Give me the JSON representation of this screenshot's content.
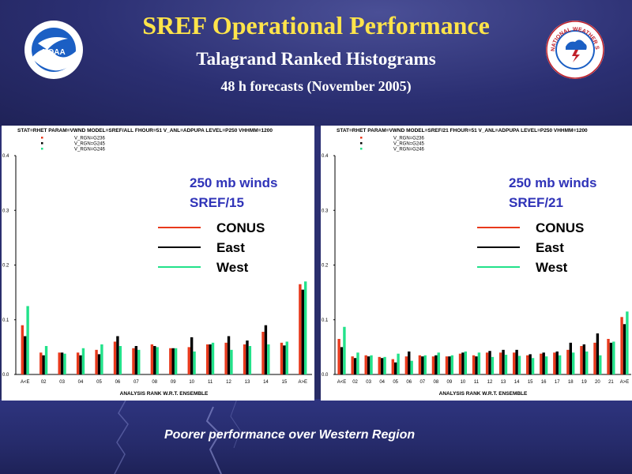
{
  "header": {
    "title": "SREF Operational Performance",
    "subtitle": "Talagrand Ranked Histograms",
    "period": "48 h forecasts (November 2005)"
  },
  "logos": {
    "left": "NOAA",
    "right": "NATIONAL WEATHER SERVICE"
  },
  "footer": "Poorer performance over Western Region",
  "colors": {
    "title": "#ffe44a",
    "conus": "#e8391c",
    "east": "#000000",
    "west": "#22e28a",
    "annotation": "#2f33b8"
  },
  "chart_data": [
    {
      "type": "bar",
      "header": "STAT=RHET PARAM=VWND MODEL=SREF/ALL FHOUR=51 V_ANL=ADPUPA LEVEL=P250 VHHMM=1200",
      "legend_codes": [
        "V_RGN=G236",
        "V_RGN=G245",
        "V_RGN=G246"
      ],
      "annotation": [
        "250 mb winds",
        "SREF/15"
      ],
      "legend": [
        "CONUS",
        "East",
        "West"
      ],
      "xlabel": "ANALYSIS RANK W.R.T. ENSEMBLE",
      "ylim": [
        0,
        0.4
      ],
      "yticks": [
        "0.0",
        "0.1",
        "0.2",
        "0.3",
        "0.4"
      ],
      "categories": [
        "A<E",
        "02",
        "03",
        "04",
        "05",
        "06",
        "07",
        "08",
        "09",
        "10",
        "11",
        "12",
        "13",
        "14",
        "15",
        "A>E"
      ],
      "series": [
        {
          "name": "CONUS",
          "values": [
            0.09,
            0.04,
            0.04,
            0.04,
            0.045,
            0.06,
            0.048,
            0.055,
            0.048,
            0.05,
            0.055,
            0.058,
            0.055,
            0.078,
            0.058,
            0.165
          ]
        },
        {
          "name": "East",
          "values": [
            0.07,
            0.035,
            0.04,
            0.035,
            0.037,
            0.07,
            0.052,
            0.052,
            0.048,
            0.068,
            0.055,
            0.07,
            0.062,
            0.09,
            0.053,
            0.155
          ]
        },
        {
          "name": "West",
          "values": [
            0.125,
            0.052,
            0.038,
            0.048,
            0.055,
            0.052,
            0.045,
            0.05,
            0.048,
            0.042,
            0.058,
            0.045,
            0.052,
            0.055,
            0.06,
            0.17
          ]
        }
      ]
    },
    {
      "type": "bar",
      "header": "STAT=RHET PARAM=VWND MODEL=SREF/21 FHOUR=51 V_ANL=ADPUPA LEVEL=P250 VHHMM=1200",
      "legend_codes": [
        "V_RGN=G236",
        "V_RGN=G245",
        "V_RGN=G246"
      ],
      "annotation": [
        "250 mb winds",
        "SREF/21"
      ],
      "legend": [
        "CONUS",
        "East",
        "West"
      ],
      "xlabel": "ANALYSIS RANK W.R.T. ENSEMBLE",
      "ylim": [
        0,
        0.4
      ],
      "yticks": [
        "0.0",
        "0.1",
        "0.2",
        "0.3",
        "0.4"
      ],
      "categories": [
        "A<E",
        "02",
        "03",
        "04",
        "05",
        "06",
        "07",
        "08",
        "09",
        "10",
        "11",
        "12",
        "13",
        "14",
        "15",
        "16",
        "17",
        "18",
        "19",
        "20",
        "21",
        "A>E"
      ],
      "series": [
        {
          "name": "CONUS",
          "values": [
            0.065,
            0.033,
            0.035,
            0.032,
            0.028,
            0.033,
            0.035,
            0.033,
            0.033,
            0.038,
            0.035,
            0.04,
            0.04,
            0.04,
            0.035,
            0.038,
            0.04,
            0.045,
            0.052,
            0.058,
            0.065,
            0.105
          ]
        },
        {
          "name": "East",
          "values": [
            0.05,
            0.03,
            0.033,
            0.03,
            0.022,
            0.042,
            0.033,
            0.035,
            0.033,
            0.04,
            0.033,
            0.043,
            0.045,
            0.045,
            0.037,
            0.04,
            0.042,
            0.058,
            0.055,
            0.075,
            0.058,
            0.092
          ]
        },
        {
          "name": "West",
          "values": [
            0.087,
            0.04,
            0.035,
            0.032,
            0.038,
            0.025,
            0.035,
            0.04,
            0.035,
            0.042,
            0.04,
            0.032,
            0.036,
            0.034,
            0.03,
            0.033,
            0.035,
            0.04,
            0.042,
            0.035,
            0.06,
            0.115
          ]
        }
      ]
    }
  ]
}
